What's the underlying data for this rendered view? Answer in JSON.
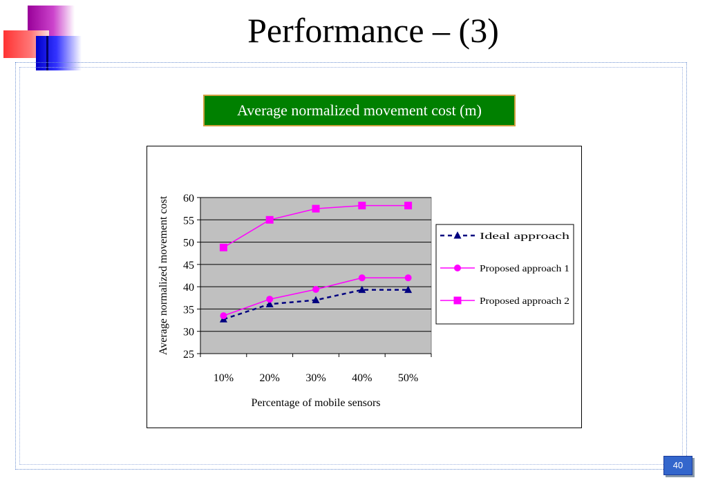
{
  "slide": {
    "title": "Performance – (3)",
    "subtitle": "Average normalized movement cost (m)",
    "page_number": "40"
  },
  "colors": {
    "plot_background": "#c0c0c0",
    "subtitle_background": "#008000",
    "subtitle_border": "#d0a040",
    "ideal": "#000080",
    "proposed": "#ff00ff",
    "page_badge": "#3366cc"
  },
  "chart_data": {
    "type": "line",
    "title": "",
    "xlabel": "Percentage of mobile sensors",
    "ylabel": "Average normalized movement cost",
    "categories": [
      "10%",
      "20%",
      "30%",
      "40%",
      "50%"
    ],
    "ylim": [
      25,
      60
    ],
    "yticks": [
      25,
      30,
      35,
      40,
      45,
      50,
      55,
      60
    ],
    "grid": true,
    "legend_position": "right",
    "series": [
      {
        "name": "Ideal approach",
        "values": [
          32.7,
          36.1,
          37.0,
          39.3,
          39.3
        ],
        "marker": "triangle",
        "line": "dashed",
        "color": "#000080"
      },
      {
        "name": "Proposed approach 1",
        "values": [
          33.5,
          37.2,
          39.4,
          42.0,
          42.0
        ],
        "marker": "circle",
        "line": "solid",
        "color": "#ff00ff"
      },
      {
        "name": "Proposed approach 2",
        "values": [
          48.8,
          55.0,
          57.5,
          58.2,
          58.2
        ],
        "marker": "square",
        "line": "solid",
        "color": "#ff00ff"
      }
    ]
  }
}
